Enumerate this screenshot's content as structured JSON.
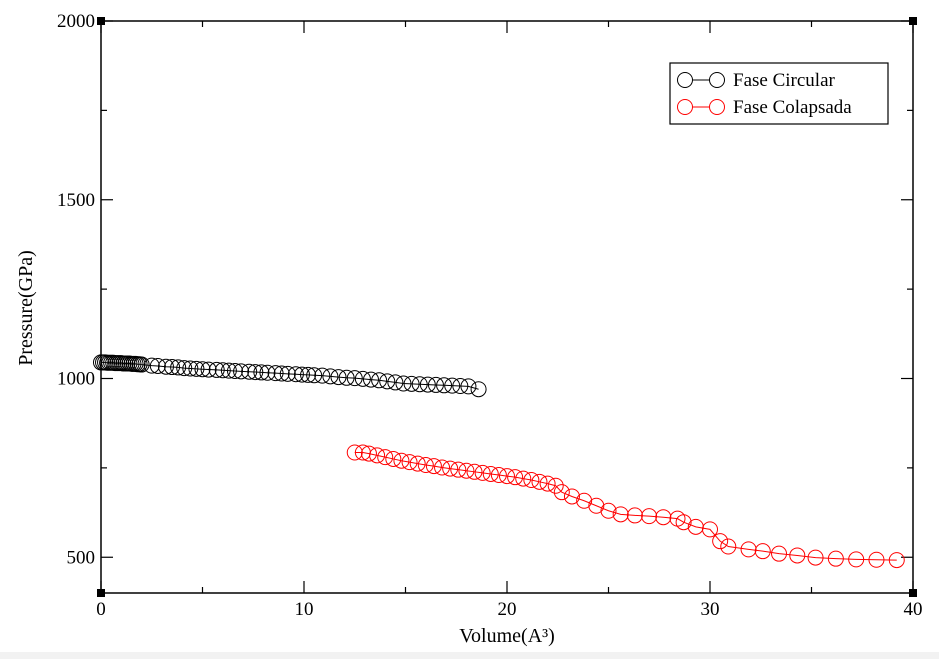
{
  "chart_data": {
    "type": "scatter",
    "xlabel": "Volume(A³)",
    "ylabel": "Pressure(GPa)",
    "xlim": [
      0,
      40
    ],
    "ylim": [
      400,
      2000
    ],
    "x_ticks": [
      0,
      10,
      20,
      30,
      40
    ],
    "x_tick_labels": [
      "0",
      "10",
      "20",
      "30",
      "40"
    ],
    "y_ticks": [
      500,
      1000,
      1500,
      2000
    ],
    "y_tick_labels": [
      "500",
      "1000",
      "1500",
      "2000"
    ],
    "grid": false,
    "legend_position": "top-right",
    "series": [
      {
        "name": "Fase Circular",
        "color": "#000000",
        "marker": "open-circle",
        "x": [
          0.0,
          0.1,
          0.2,
          0.3,
          0.4,
          0.5,
          0.6,
          0.7,
          0.8,
          0.9,
          1.0,
          1.1,
          1.2,
          1.3,
          1.4,
          1.5,
          1.6,
          1.7,
          1.8,
          1.9,
          2.0,
          2.5,
          2.8,
          3.2,
          3.5,
          3.8,
          4.1,
          4.4,
          4.7,
          5.0,
          5.3,
          5.7,
          6.0,
          6.3,
          6.6,
          6.9,
          7.3,
          7.6,
          7.9,
          8.2,
          8.6,
          8.9,
          9.2,
          9.6,
          9.9,
          10.2,
          10.5,
          10.9,
          11.3,
          11.7,
          12.1,
          12.5,
          12.9,
          13.3,
          13.7,
          14.1,
          14.5,
          14.9,
          15.3,
          15.7,
          16.1,
          16.5,
          16.9,
          17.3,
          17.7,
          18.1,
          18.6
        ],
        "y": [
          1045,
          1045,
          1045,
          1044,
          1044,
          1044,
          1044,
          1043,
          1043,
          1043,
          1043,
          1042,
          1042,
          1042,
          1042,
          1041,
          1041,
          1041,
          1040,
          1040,
          1039,
          1036,
          1035,
          1033,
          1032,
          1031,
          1029,
          1028,
          1027,
          1026,
          1025,
          1024,
          1023,
          1022,
          1021,
          1020,
          1019,
          1018,
          1017,
          1016,
          1015,
          1014,
          1013,
          1012,
          1011,
          1010,
          1009,
          1008,
          1006,
          1004,
          1002,
          1001,
          999,
          997,
          995,
          992,
          989,
          986,
          985,
          984,
          983,
          982,
          981,
          980,
          979,
          978,
          970
        ]
      },
      {
        "name": "Fase Colapsada",
        "color": "#ff0000",
        "marker": "open-circle",
        "x": [
          12.5,
          12.9,
          13.2,
          13.6,
          14.0,
          14.4,
          14.8,
          15.2,
          15.6,
          16.0,
          16.4,
          16.8,
          17.2,
          17.6,
          18.0,
          18.4,
          18.8,
          19.2,
          19.6,
          20.0,
          20.4,
          20.8,
          21.2,
          21.6,
          22.0,
          22.4,
          22.7,
          23.2,
          23.8,
          24.4,
          25.0,
          25.6,
          26.3,
          27.0,
          27.7,
          28.4,
          28.7,
          29.3,
          30.0,
          30.5,
          30.9,
          31.9,
          32.6,
          33.4,
          34.3,
          35.2,
          36.2,
          37.2,
          38.2,
          39.2
        ],
        "y": [
          793,
          793,
          790,
          785,
          780,
          775,
          770,
          766,
          762,
          758,
          755,
          751,
          748,
          745,
          742,
          739,
          736,
          733,
          730,
          727,
          724,
          720,
          716,
          711,
          706,
          700,
          682,
          670,
          658,
          644,
          630,
          620,
          617,
          615,
          612,
          608,
          598,
          585,
          578,
          545,
          530,
          522,
          517,
          510,
          505,
          499,
          496,
          494,
          493,
          492
        ]
      }
    ]
  }
}
